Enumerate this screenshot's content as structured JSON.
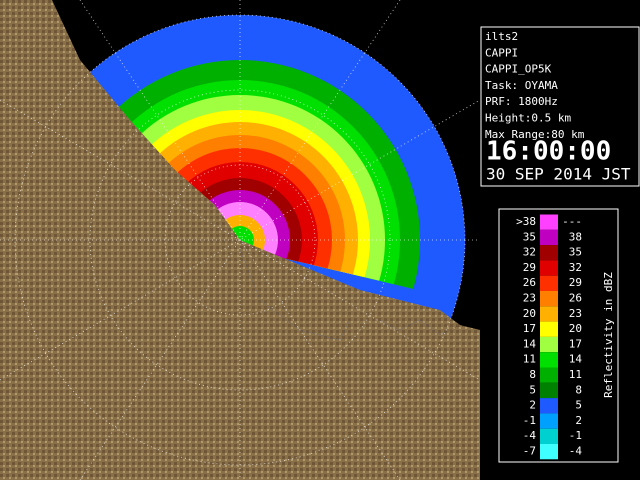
{
  "info": {
    "lines": [
      "ilts2",
      "CAPPI",
      "CAPPI_OP5K",
      "Task: OYAMA",
      "PRF: 1800Hz",
      "Height:0.5 km",
      "Max Range:80 km"
    ],
    "time": "16:00:00",
    "date": "30 SEP 2014 JST"
  },
  "legend": {
    "title": "Reflectivity in dBZ",
    "rows": [
      {
        "low": ">38",
        "high": "---",
        "color": "#ff40ff"
      },
      {
        "low": "35",
        "high": "38",
        "color": "#c000c0"
      },
      {
        "low": "32",
        "high": "35",
        "color": "#a00000"
      },
      {
        "low": "29",
        "high": "32",
        "color": "#e00000"
      },
      {
        "low": "26",
        "high": "29",
        "color": "#ff3000"
      },
      {
        "low": "23",
        "high": "26",
        "color": "#ff8000"
      },
      {
        "low": "20",
        "high": "23",
        "color": "#ffb000"
      },
      {
        "low": "17",
        "high": "20",
        "color": "#ffff00"
      },
      {
        "low": "14",
        "high": "17",
        "color": "#a0ff40"
      },
      {
        "low": "11",
        "high": "14",
        "color": "#00e000"
      },
      {
        "low": "8",
        "high": "11",
        "color": "#00b000"
      },
      {
        "low": "5",
        "high": "8",
        "color": "#008000"
      },
      {
        "low": "2",
        "high": "5",
        "color": "#1e5aff"
      },
      {
        "low": "-1",
        "high": "2",
        "color": "#00a0ff"
      },
      {
        "low": "-4",
        "high": "-1",
        "color": "#00d0d0"
      },
      {
        "low": "-7",
        "high": "-4",
        "color": "#40ffff"
      }
    ]
  }
}
